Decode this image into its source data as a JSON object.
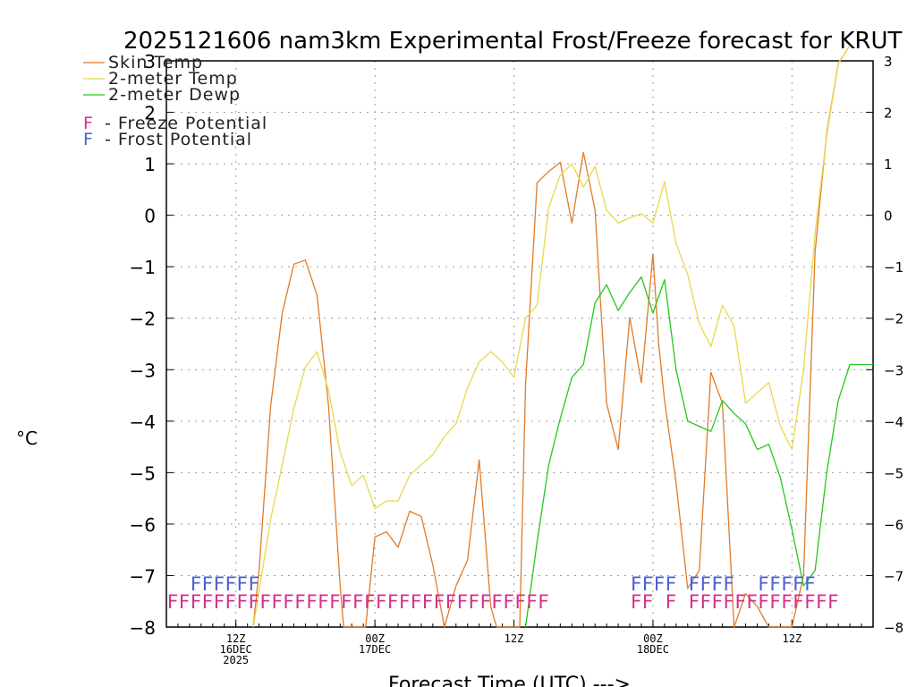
{
  "chart_data": {
    "type": "line",
    "title": "2025121606 nam3km Experimental Frost/Freeze forecast for KRUT",
    "xlabel": "Forecast Time (UTC) --->",
    "ylabel": "°C",
    "ylim": [
      -8,
      3
    ],
    "xlim": [
      0,
      61
    ],
    "yticks": [
      -8,
      -7,
      -6,
      -5,
      -4,
      -3,
      -2,
      -1,
      0,
      1,
      2,
      3
    ],
    "x_ticks": [
      {
        "x": 6,
        "lines": [
          "12Z",
          "16DEC",
          "2025"
        ]
      },
      {
        "x": 18,
        "lines": [
          "00Z",
          "17DEC"
        ]
      },
      {
        "x": 30,
        "lines": [
          "12Z"
        ]
      },
      {
        "x": 42,
        "lines": [
          "00Z",
          "18DEC"
        ]
      },
      {
        "x": 54,
        "lines": [
          "12Z"
        ]
      }
    ],
    "series": [
      {
        "name": "Skin Temp",
        "color": "#e07b28",
        "x": [
          7.5,
          8,
          9,
          10,
          11,
          12,
          13,
          14,
          15,
          15.3,
          16,
          17.2,
          18,
          19,
          20,
          21,
          22,
          23,
          24,
          25,
          26,
          27,
          28,
          28.5,
          29,
          30,
          30.5,
          31,
          32,
          33,
          34,
          35,
          36,
          37,
          38,
          39,
          40,
          41,
          41.5,
          42,
          42.5,
          43,
          44,
          45,
          46,
          47,
          48,
          49,
          50,
          51,
          52,
          53,
          54,
          55,
          56,
          57,
          58,
          59
        ],
        "values": [
          -8,
          -6.9,
          -3.7,
          -1.9,
          -0.95,
          -0.87,
          -1.55,
          -3.7,
          -7.2,
          -8,
          -8,
          -8,
          -6.25,
          -6.15,
          -6.45,
          -5.75,
          -5.85,
          -6.8,
          -8,
          -7.2,
          -6.7,
          -4.75,
          -7.6,
          -8,
          -8,
          -8,
          -8,
          -3.3,
          0.63,
          0.85,
          1.03,
          -0.15,
          1.22,
          0.1,
          -3.65,
          -4.55,
          -1.98,
          -3.25,
          -2.0,
          -0.75,
          -2.5,
          -3.6,
          -5.2,
          -7.25,
          -6.9,
          -3.05,
          -3.65,
          -8,
          -7.35,
          -7.6,
          -8,
          -8,
          -8,
          -7.0,
          -0.7,
          1.6,
          2.95,
          3.3
        ]
      },
      {
        "name": "2-meter Temp",
        "color": "#e8d84a",
        "x": [
          7.5,
          8,
          9,
          10,
          11,
          12,
          13,
          14,
          15,
          16,
          17,
          18,
          19,
          20,
          21,
          22,
          23,
          24,
          25,
          26,
          27,
          28,
          29,
          30,
          31,
          32,
          33,
          34,
          35,
          36,
          37,
          38,
          39,
          40,
          41,
          42,
          43,
          44,
          45,
          46,
          47,
          48,
          49,
          50,
          51,
          52,
          53,
          54,
          55,
          56,
          57,
          58,
          59
        ],
        "values": [
          -8,
          -7.3,
          -5.9,
          -4.85,
          -3.75,
          -2.95,
          -2.65,
          -3.4,
          -4.6,
          -5.25,
          -5.05,
          -5.7,
          -5.55,
          -5.55,
          -5.05,
          -4.85,
          -4.65,
          -4.3,
          -4.05,
          -3.35,
          -2.85,
          -2.65,
          -2.85,
          -3.15,
          -2.0,
          -1.75,
          0.15,
          0.78,
          1.0,
          0.55,
          0.95,
          0.1,
          -0.15,
          -0.05,
          0.03,
          -0.15,
          0.65,
          -0.55,
          -1.15,
          -2.1,
          -2.55,
          -1.75,
          -2.15,
          -3.65,
          -3.45,
          -3.25,
          -4.1,
          -4.55,
          -3.0,
          -0.35,
          1.55,
          2.95,
          3.3
        ]
      },
      {
        "name": "2-meter Dewp",
        "color": "#22c91b",
        "x": [
          31,
          32,
          33,
          34,
          35,
          36,
          37,
          38,
          39,
          40,
          41,
          42,
          43,
          44,
          45,
          46,
          47,
          48,
          49,
          50,
          51,
          52,
          53,
          54,
          55,
          56,
          57,
          58,
          59,
          60,
          61
        ],
        "values": [
          -8,
          -6.35,
          -4.85,
          -3.95,
          -3.15,
          -2.9,
          -1.7,
          -1.35,
          -1.85,
          -1.5,
          -1.2,
          -1.9,
          -1.25,
          -3.0,
          -4.0,
          -4.1,
          -4.2,
          -3.6,
          -3.85,
          -4.05,
          -4.55,
          -4.45,
          -5.1,
          -6.1,
          -7.2,
          -6.9,
          -5.0,
          -3.6,
          -2.9,
          -2.9,
          -2.9
        ]
      }
    ],
    "legend": [
      {
        "label": "Skin Temp",
        "color": "#e07b28"
      },
      {
        "label": "2-meter Temp",
        "color": "#e8d84a"
      },
      {
        "label": "2-meter Dewp",
        "color": "#22c91b"
      }
    ],
    "potential_legend": [
      {
        "mark": "F",
        "label": "- Freeze Potential",
        "color": "#d62f8a"
      },
      {
        "mark": "F",
        "label": "- Frost Potential",
        "color": "#4a5ed6"
      }
    ],
    "frost_potential": {
      "color": "#4a5ed6",
      "level": -7.15,
      "x": [
        2,
        3,
        4,
        5,
        6,
        7,
        40,
        41,
        42,
        43,
        45,
        46,
        47,
        48,
        51,
        52,
        53,
        54,
        55
      ]
    },
    "freeze_potential": {
      "color": "#d62f8a",
      "level": -7.5,
      "x": [
        0,
        1,
        2,
        3,
        4,
        5,
        6,
        7,
        8,
        9,
        10,
        11,
        12,
        13,
        14,
        15,
        16,
        17,
        18,
        19,
        20,
        21,
        22,
        23,
        24,
        25,
        26,
        27,
        28,
        29,
        30,
        31,
        32,
        40,
        41,
        43,
        45,
        46,
        47,
        48,
        49,
        50,
        51,
        52,
        53,
        54,
        55,
        56,
        57
      ]
    }
  }
}
